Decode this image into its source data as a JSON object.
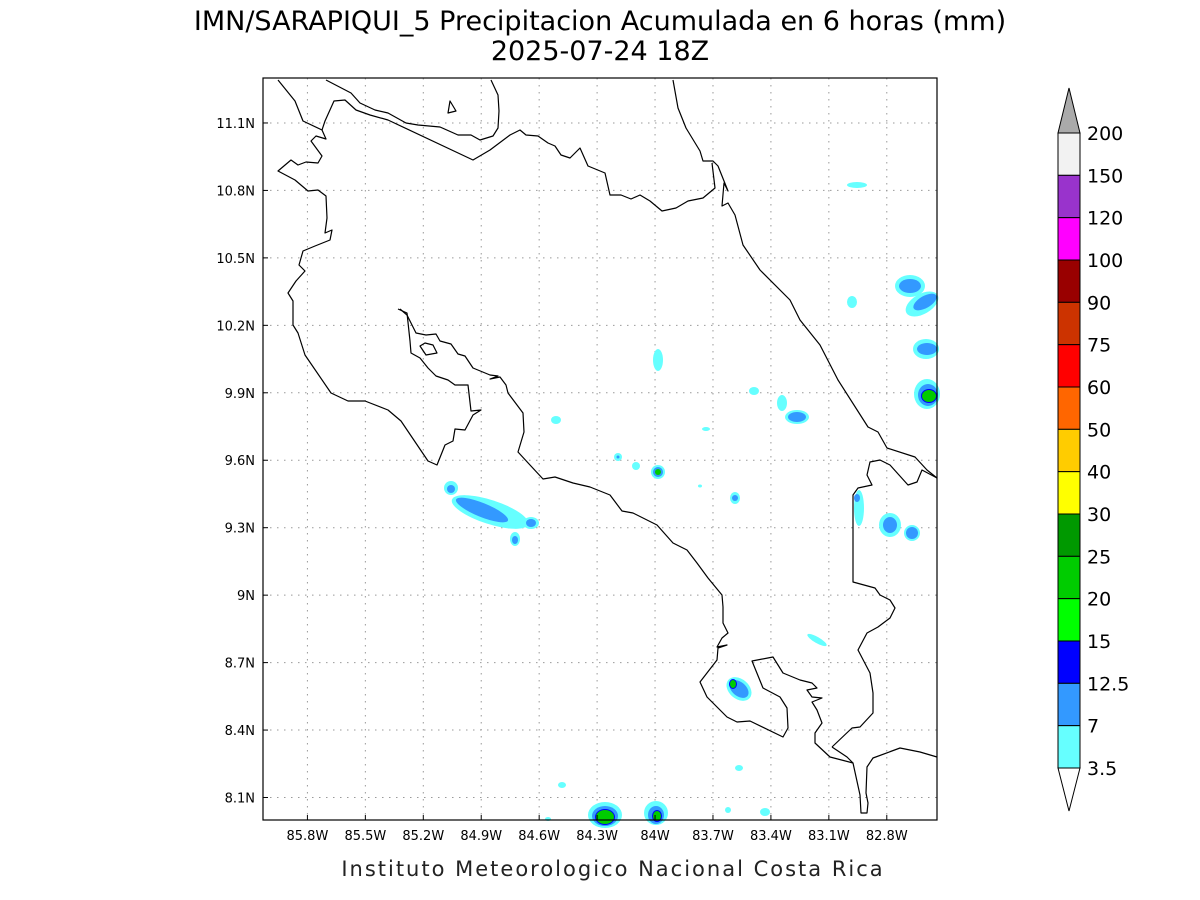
{
  "title": {
    "line1": "IMN/SARAPIQUI_5 Precipitacion Acumulada en 6 horas (mm)",
    "line2": "2025-07-24 18Z"
  },
  "footer": "Instituto Meteorologico Nacional Costa Rica",
  "map": {
    "lon_range": [
      -86.03,
      -82.54
    ],
    "lat_range": [
      8.0,
      11.3
    ],
    "grid": true,
    "lon_ticks": [
      "85.8W",
      "85.5W",
      "85.2W",
      "84.9W",
      "84.6W",
      "84.3W",
      "84W",
      "83.7W",
      "83.4W",
      "83.1W",
      "82.8W"
    ],
    "lat_ticks": [
      "11.1N",
      "10.8N",
      "10.5N",
      "10.2N",
      "9.9N",
      "9.6N",
      "9.3N",
      "9N",
      "8.7N",
      "8.4N",
      "8.1N"
    ]
  },
  "colorbar": {
    "levels": [
      "200",
      "150",
      "120",
      "100",
      "90",
      "75",
      "60",
      "50",
      "40",
      "30",
      "25",
      "20",
      "15",
      "12.5",
      "7",
      "3.5"
    ],
    "colors": [
      "#f2f2f2",
      "#9933cc",
      "#ff00ff",
      "#990000",
      "#cc3300",
      "#ff0000",
      "#ff6600",
      "#ffcc00",
      "#ffff00",
      "#009900",
      "#00cc00",
      "#00ff00",
      "#0000ff",
      "#3399ff",
      "#66ffff"
    ],
    "over_color": "#aaaaaa",
    "under_color": "#ffffff"
  }
}
